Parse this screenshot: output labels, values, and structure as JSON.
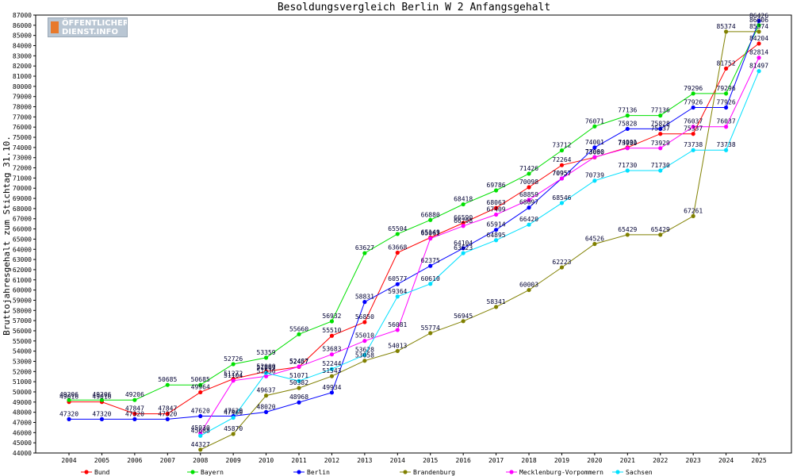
{
  "logo": {
    "line1": "ÖFFENTLICHER",
    "line2": "DIENST.INFO"
  },
  "chart_data": {
    "type": "line",
    "title": "Besoldungsvergleich Berlin W 2 Anfangsgehalt",
    "ylabel": "Bruttojahresgehalt zum Stichtag 31.10.",
    "xlabel": "",
    "ylim": [
      44000,
      87000
    ],
    "ystep": 1000,
    "grid": false,
    "legend": "bottom",
    "categories": [
      "2004",
      "2005",
      "2006",
      "2007",
      "2008",
      "2009",
      "2010",
      "2011",
      "2012",
      "2013",
      "2014",
      "2015",
      "2016",
      "2017",
      "2018",
      "2019",
      "2020",
      "2021",
      "2022",
      "2023",
      "2024",
      "2025"
    ],
    "series": [
      {
        "name": "Bund",
        "color": "#ff0000",
        "values": [
          49016,
          49016,
          47847,
          47847,
          49964,
          51272,
          52000,
          52457,
          55510,
          56850,
          63668,
          65149,
          66590,
          68063,
          70098,
          72264,
          73030,
          74001,
          75337,
          75337,
          81752,
          84204
        ]
      },
      {
        "name": "Bayern",
        "color": "#00e000",
        "values": [
          49206,
          49206,
          49206,
          50685,
          50685,
          52726,
          53359,
          55660,
          56932,
          63627,
          65504,
          66880,
          68418,
          69786,
          71426,
          73712,
          76071,
          77136,
          77136,
          79296,
          79296,
          86006
        ]
      },
      {
        "name": "Berlin",
        "color": "#0000ff",
        "values": [
          47320,
          47320,
          47320,
          47320,
          47620,
          47620,
          48020,
          48968,
          49934,
          58831,
          60577,
          62375,
          64104,
          65914,
          68097,
          70957,
          74001,
          75828,
          75828,
          77926,
          77926,
          86426
        ]
      },
      {
        "name": "Brandenburg",
        "color": "#808000",
        "values": [
          null,
          null,
          null,
          null,
          44327,
          45870,
          49637,
          50382,
          51543,
          53058,
          54013,
          55774,
          56945,
          58341,
          60003,
          62223,
          64526,
          65429,
          65429,
          67261,
          85374,
          85374
        ]
      },
      {
        "name": "Mecklenburg-Vorpommern",
        "color": "#ff00ff",
        "values": [
          null,
          null,
          null,
          null,
          45930,
          51104,
          51536,
          52487,
          53683,
          55010,
          56081,
          65061,
          66298,
          67409,
          68859,
          70957,
          73060,
          73930,
          73929,
          76037,
          76037,
          82814
        ]
      },
      {
        "name": "Sachsen",
        "color": "#00e0ff",
        "values": [
          null,
          null,
          null,
          null,
          45688,
          47460,
          51863,
          51071,
          52244,
          53628,
          59364,
          60610,
          63623,
          64895,
          66420,
          68546,
          70739,
          71730,
          71730,
          73738,
          73738,
          81497
        ]
      }
    ]
  }
}
